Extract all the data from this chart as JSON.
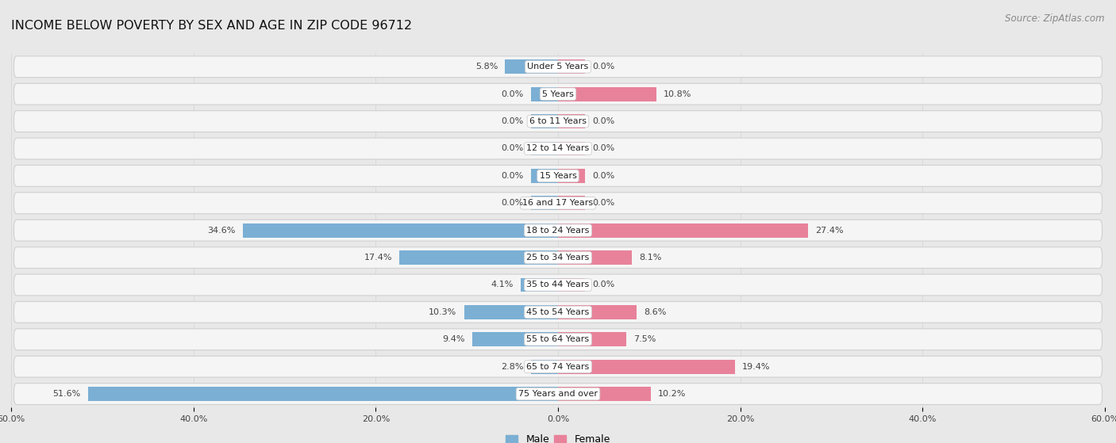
{
  "title": "INCOME BELOW POVERTY BY SEX AND AGE IN ZIP CODE 96712",
  "source": "Source: ZipAtlas.com",
  "categories": [
    "Under 5 Years",
    "5 Years",
    "6 to 11 Years",
    "12 to 14 Years",
    "15 Years",
    "16 and 17 Years",
    "18 to 24 Years",
    "25 to 34 Years",
    "35 to 44 Years",
    "45 to 54 Years",
    "55 to 64 Years",
    "65 to 74 Years",
    "75 Years and over"
  ],
  "male": [
    5.8,
    0.0,
    0.0,
    0.0,
    0.0,
    0.0,
    34.6,
    17.4,
    4.1,
    10.3,
    9.4,
    2.8,
    51.6
  ],
  "female": [
    0.0,
    10.8,
    0.0,
    0.0,
    0.0,
    0.0,
    27.4,
    8.1,
    0.0,
    8.6,
    7.5,
    19.4,
    10.2
  ],
  "male_color": "#7bafd4",
  "female_color": "#e8829a",
  "axis_limit": 60.0,
  "min_bar": 3.0,
  "background_color": "#e8e8e8",
  "row_bg_color": "#f5f5f5",
  "row_border_color": "#d0d0d0",
  "title_fontsize": 11.5,
  "source_fontsize": 8.5,
  "label_fontsize": 8,
  "category_fontsize": 8,
  "tick_fontsize": 8,
  "legend_fontsize": 9,
  "tick_positions": [
    -60,
    -40,
    -20,
    0,
    20,
    40,
    60
  ],
  "tick_labels": [
    "60.0%",
    "40.0%",
    "20.0%",
    "0.0%",
    "20.0%",
    "40.0%",
    "60.0%"
  ]
}
